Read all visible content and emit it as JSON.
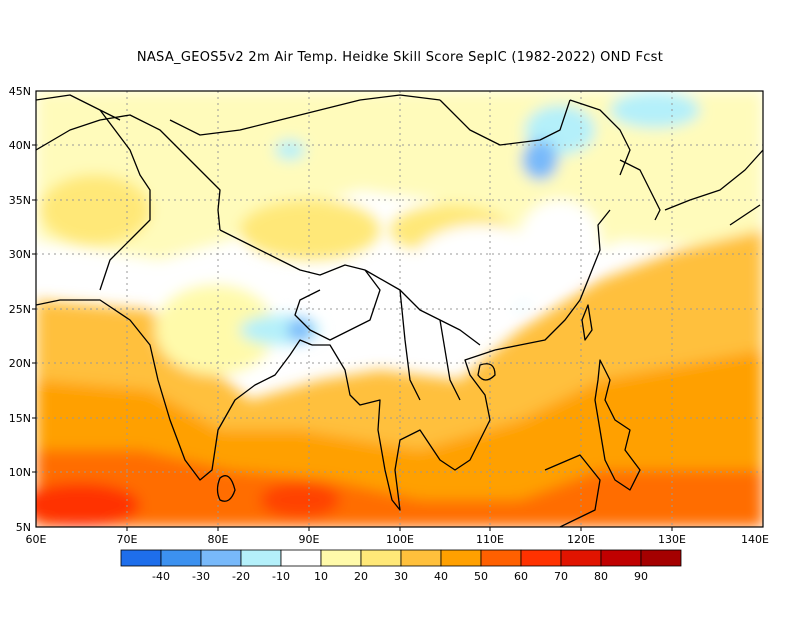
{
  "title": "NASA_GEOS5v2  2m Air Temp. Heidke Skill Score SepIC (1982-2022) OND Fcst",
  "lat_labels": [
    "45N",
    "40N",
    "35N",
    "30N",
    "25N",
    "20N",
    "15N",
    "10N",
    "5N"
  ],
  "lon_labels": [
    "60E",
    "70E",
    "80E",
    "90E",
    "100E",
    "110E",
    "120E",
    "130E",
    "140E"
  ],
  "colorbar": {
    "colors": [
      "#1e6eeb",
      "#3c91f0",
      "#78b9fa",
      "#b4f0fa",
      "#ffffff",
      "#fffaaa",
      "#ffe878",
      "#ffc03c",
      "#ffa000",
      "#ff6000",
      "#ff3200",
      "#e11400",
      "#c00000",
      "#a50000"
    ],
    "labels": [
      "-40",
      "-30",
      "-20",
      "-10",
      "10",
      "20",
      "30",
      "40",
      "50",
      "60",
      "70",
      "80",
      "90"
    ]
  },
  "extent": {
    "lon": [
      60,
      140
    ],
    "lat": [
      5,
      45
    ]
  }
}
